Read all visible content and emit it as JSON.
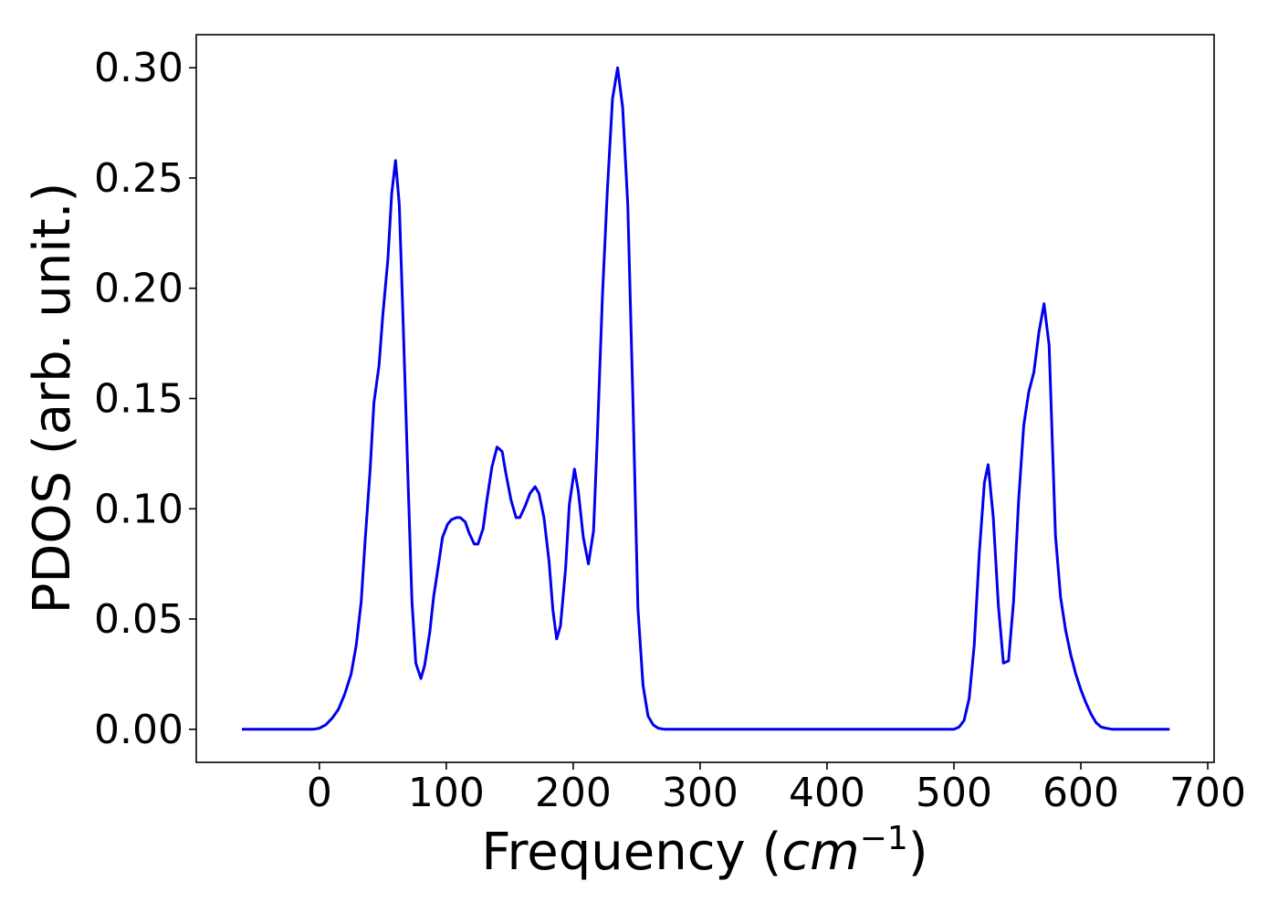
{
  "chart_data": {
    "type": "line",
    "xlabel": "Frequency (",
    "xlabel_math": "cm",
    "xlabel_exp": "−1",
    "xlabel_close": ")",
    "ylabel": "PDOS (arb. unit.)",
    "xlim": [
      -97,
      705
    ],
    "ylim": [
      -0.015,
      0.315
    ],
    "xticks": [
      0,
      100,
      200,
      300,
      400,
      500,
      600,
      700
    ],
    "xtick_labels": [
      "0",
      "100",
      "200",
      "300",
      "400",
      "500",
      "600",
      "700"
    ],
    "yticks": [
      0.0,
      0.05,
      0.1,
      0.15,
      0.2,
      0.25,
      0.3
    ],
    "ytick_labels": [
      "0.00",
      "0.05",
      "0.10",
      "0.15",
      "0.20",
      "0.25",
      "0.30"
    ],
    "grid": false,
    "legend": "none",
    "line_color": "#0000ee",
    "series": [
      {
        "x": [
          -61,
          -40,
          -20,
          -5,
          0,
          5,
          10,
          15,
          20,
          25,
          29,
          33,
          36,
          40,
          43,
          47,
          50,
          54,
          57,
          60,
          63,
          66,
          70,
          73,
          76,
          80,
          83,
          87,
          90,
          94,
          97,
          101,
          104,
          108,
          111,
          115,
          118,
          122,
          125,
          129,
          132,
          136,
          140,
          144,
          147,
          151,
          155,
          158,
          162,
          166,
          170,
          173,
          177,
          181,
          184,
          187,
          190,
          194,
          197,
          201,
          204,
          208,
          212,
          216,
          219,
          223,
          227,
          231,
          235,
          239,
          243,
          247,
          251,
          255,
          259,
          263,
          267,
          272,
          280,
          300,
          400,
          500,
          504,
          508,
          512,
          516,
          520,
          524,
          527,
          531,
          535,
          539,
          543,
          547,
          551,
          555,
          559,
          563,
          567,
          571,
          575,
          580,
          584,
          588,
          592,
          596,
          600,
          604,
          608,
          612,
          616,
          620,
          625,
          640,
          670
        ],
        "y": [
          0.0,
          0.0,
          0.0,
          0.0,
          0.0005,
          0.002,
          0.005,
          0.009,
          0.016,
          0.025,
          0.038,
          0.058,
          0.085,
          0.118,
          0.148,
          0.165,
          0.188,
          0.213,
          0.243,
          0.258,
          0.238,
          0.185,
          0.11,
          0.058,
          0.03,
          0.023,
          0.029,
          0.044,
          0.06,
          0.075,
          0.087,
          0.093,
          0.095,
          0.096,
          0.096,
          0.094,
          0.089,
          0.084,
          0.084,
          0.091,
          0.104,
          0.119,
          0.128,
          0.126,
          0.116,
          0.104,
          0.096,
          0.096,
          0.101,
          0.107,
          0.11,
          0.107,
          0.096,
          0.076,
          0.054,
          0.041,
          0.047,
          0.073,
          0.102,
          0.118,
          0.108,
          0.087,
          0.075,
          0.09,
          0.132,
          0.196,
          0.245,
          0.286,
          0.3,
          0.282,
          0.238,
          0.15,
          0.055,
          0.02,
          0.006,
          0.002,
          0.0005,
          0.0,
          0.0,
          0.0,
          0.0,
          0.0,
          0.001,
          0.004,
          0.014,
          0.038,
          0.08,
          0.112,
          0.12,
          0.096,
          0.056,
          0.03,
          0.031,
          0.058,
          0.104,
          0.138,
          0.153,
          0.162,
          0.18,
          0.193,
          0.174,
          0.088,
          0.06,
          0.045,
          0.034,
          0.025,
          0.018,
          0.012,
          0.007,
          0.003,
          0.001,
          0.0005,
          0.0,
          0.0,
          0.0
        ]
      }
    ]
  }
}
